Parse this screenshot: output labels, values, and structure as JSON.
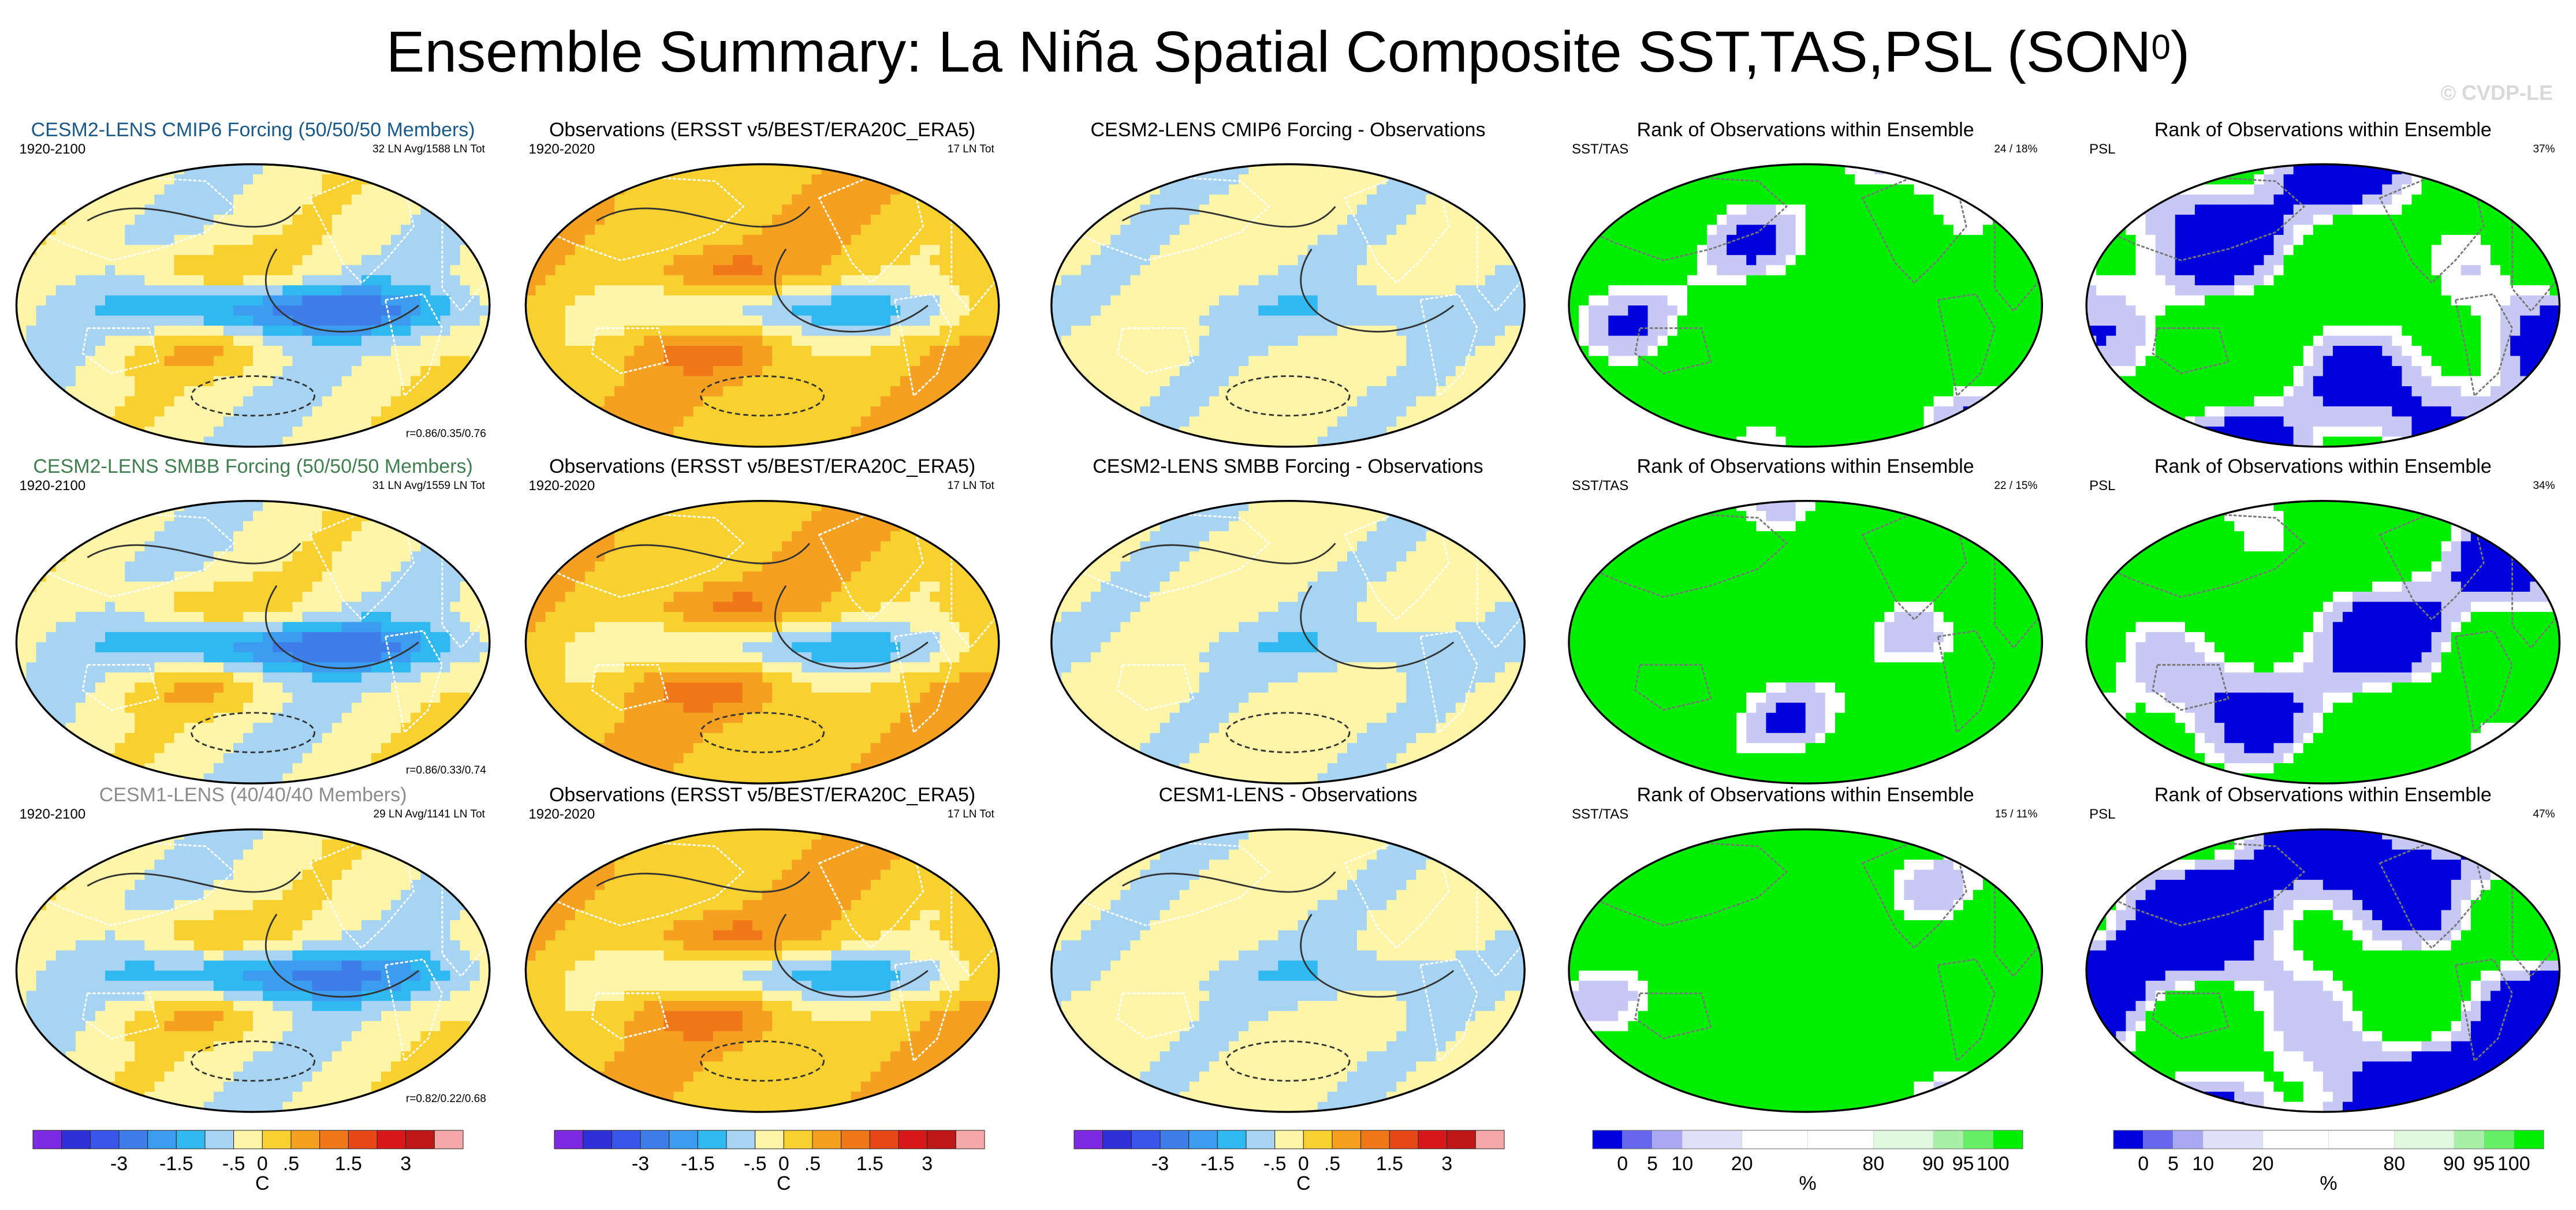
{
  "figure": {
    "title_main": "Ensemble Summary: La Niña Spatial Composite SST,TAS,PSL (SON",
    "title_sup": "0",
    "title_close": ")",
    "watermark": "© CVDP-LE"
  },
  "colors": {
    "cesm2_cmip6": "#1a5a8a",
    "cesm2_smbb": "#3f7f50",
    "cesm1": "#8c8c8c",
    "rank_green": "#00ee00",
    "rank_blue": "#0000dd",
    "rank_lavender": "#c8c8f4",
    "ocean_lightblue": "#a6d4f2",
    "ocean_blue": "#3ca9ee",
    "land_outline": "#ffffff"
  },
  "chart_data": {
    "type": "heatmap",
    "projection": "robinson-like global map (pacific centred)",
    "rows": [
      {
        "model": {
          "title": "CESM2-LENS CMIP6 Forcing (50/50/50 Members)",
          "title_color": "cesm2_cmip6",
          "period": "1920-2100",
          "stats": "32 LN Avg/1588 LN Tot",
          "pattern_corr": "r=0.86/0.35/0.76",
          "nino_min": -2.0,
          "nino_width": 1.0
        },
        "obs": {
          "title": "Observations (ERSST v5/BEST/ERA20C_ERA5)",
          "period": "1920-2020",
          "stats": "17 LN Tot",
          "nino_min": -1.5,
          "nino_width": 0.8
        },
        "diff": {
          "title": "CESM2-LENS CMIP6 Forcing - Observations"
        },
        "rank_sst": {
          "title": "Rank of Observations within Ensemble",
          "left": "SST/TAS",
          "right": "24 /  18%",
          "blue_fraction": 0.18
        },
        "rank_psl": {
          "title": "Rank of Observations within Ensemble",
          "left": "PSL",
          "right": "37%",
          "blue_fraction": 0.37
        }
      },
      {
        "model": {
          "title": "CESM2-LENS SMBB Forcing (50/50/50 Members)",
          "title_color": "cesm2_smbb",
          "period": "1920-2100",
          "stats": "31 LN Avg/1559 LN Tot",
          "pattern_corr": "r=0.86/0.33/0.74",
          "nino_min": -2.0,
          "nino_width": 1.0
        },
        "obs": {
          "title": "Observations (ERSST v5/BEST/ERA20C_ERA5)",
          "period": "1920-2020",
          "stats": "17 LN Tot",
          "nino_min": -1.5,
          "nino_width": 0.8
        },
        "diff": {
          "title": "CESM2-LENS SMBB Forcing - Observations"
        },
        "rank_sst": {
          "title": "Rank of Observations within Ensemble",
          "left": "SST/TAS",
          "right": "22 /  15%",
          "blue_fraction": 0.15
        },
        "rank_psl": {
          "title": "Rank of Observations within Ensemble",
          "left": "PSL",
          "right": "34%",
          "blue_fraction": 0.34
        }
      },
      {
        "model": {
          "title": "CESM1-LENS (40/40/40 Members)",
          "title_color": "cesm1",
          "period": "1920-2100",
          "stats": "29 LN Avg/1141 LN Tot",
          "pattern_corr": "r=0.82/0.22/0.68",
          "nino_min": -1.8,
          "nino_width": 0.9
        },
        "obs": {
          "title": "Observations (ERSST v5/BEST/ERA20C_ERA5)",
          "period": "1920-2020",
          "stats": "17 LN Tot",
          "nino_min": -1.5,
          "nino_width": 0.8
        },
        "diff": {
          "title": "CESM1-LENS - Observations"
        },
        "rank_sst": {
          "title": "Rank of Observations within Ensemble",
          "left": "SST/TAS",
          "right": "15 /  11%",
          "blue_fraction": 0.11
        },
        "rank_psl": {
          "title": "Rank of Observations within Ensemble",
          "left": "PSL",
          "right": "47%",
          "blue_fraction": 0.47
        }
      }
    ],
    "temp_colorbar": {
      "unit": "C",
      "colors": [
        "#7e2ae3",
        "#3030d8",
        "#3a56e8",
        "#3e7ee8",
        "#3c9cf0",
        "#30b8f0",
        "#a6d4f2",
        "#fff5a8",
        "#f8d030",
        "#f5a020",
        "#f07818",
        "#e84818",
        "#d81818",
        "#c01818",
        "#f5a8a8"
      ],
      "tick_labels": [
        "-3",
        "-1.5",
        "-.5",
        "0",
        ".5",
        "1.5",
        "3"
      ],
      "tick_values": [
        -3,
        -1.5,
        -0.5,
        0,
        0.5,
        1.5,
        3
      ],
      "levels": [
        -5,
        -4,
        -3,
        -2,
        -1.5,
        -1,
        -0.5,
        0,
        0.5,
        1,
        1.5,
        2,
        3,
        4,
        5
      ]
    },
    "rank_colorbar": {
      "unit": "%",
      "colors": [
        "#0000dd",
        "#6666ee",
        "#a8a8f0",
        "#e0e0f8",
        "#ffffff",
        "#ffffff",
        "#e0f8e0",
        "#a8f0a8",
        "#66ee66",
        "#00ee00"
      ],
      "tick_labels": [
        "0",
        "5",
        "10",
        "20",
        "80",
        "90",
        "95",
        "100"
      ],
      "tick_values": [
        0,
        5,
        10,
        20,
        80,
        90,
        95,
        100
      ],
      "boundaries": [
        0,
        2.5,
        5,
        10,
        20,
        50,
        80,
        90,
        95,
        97.5,
        100
      ]
    }
  }
}
